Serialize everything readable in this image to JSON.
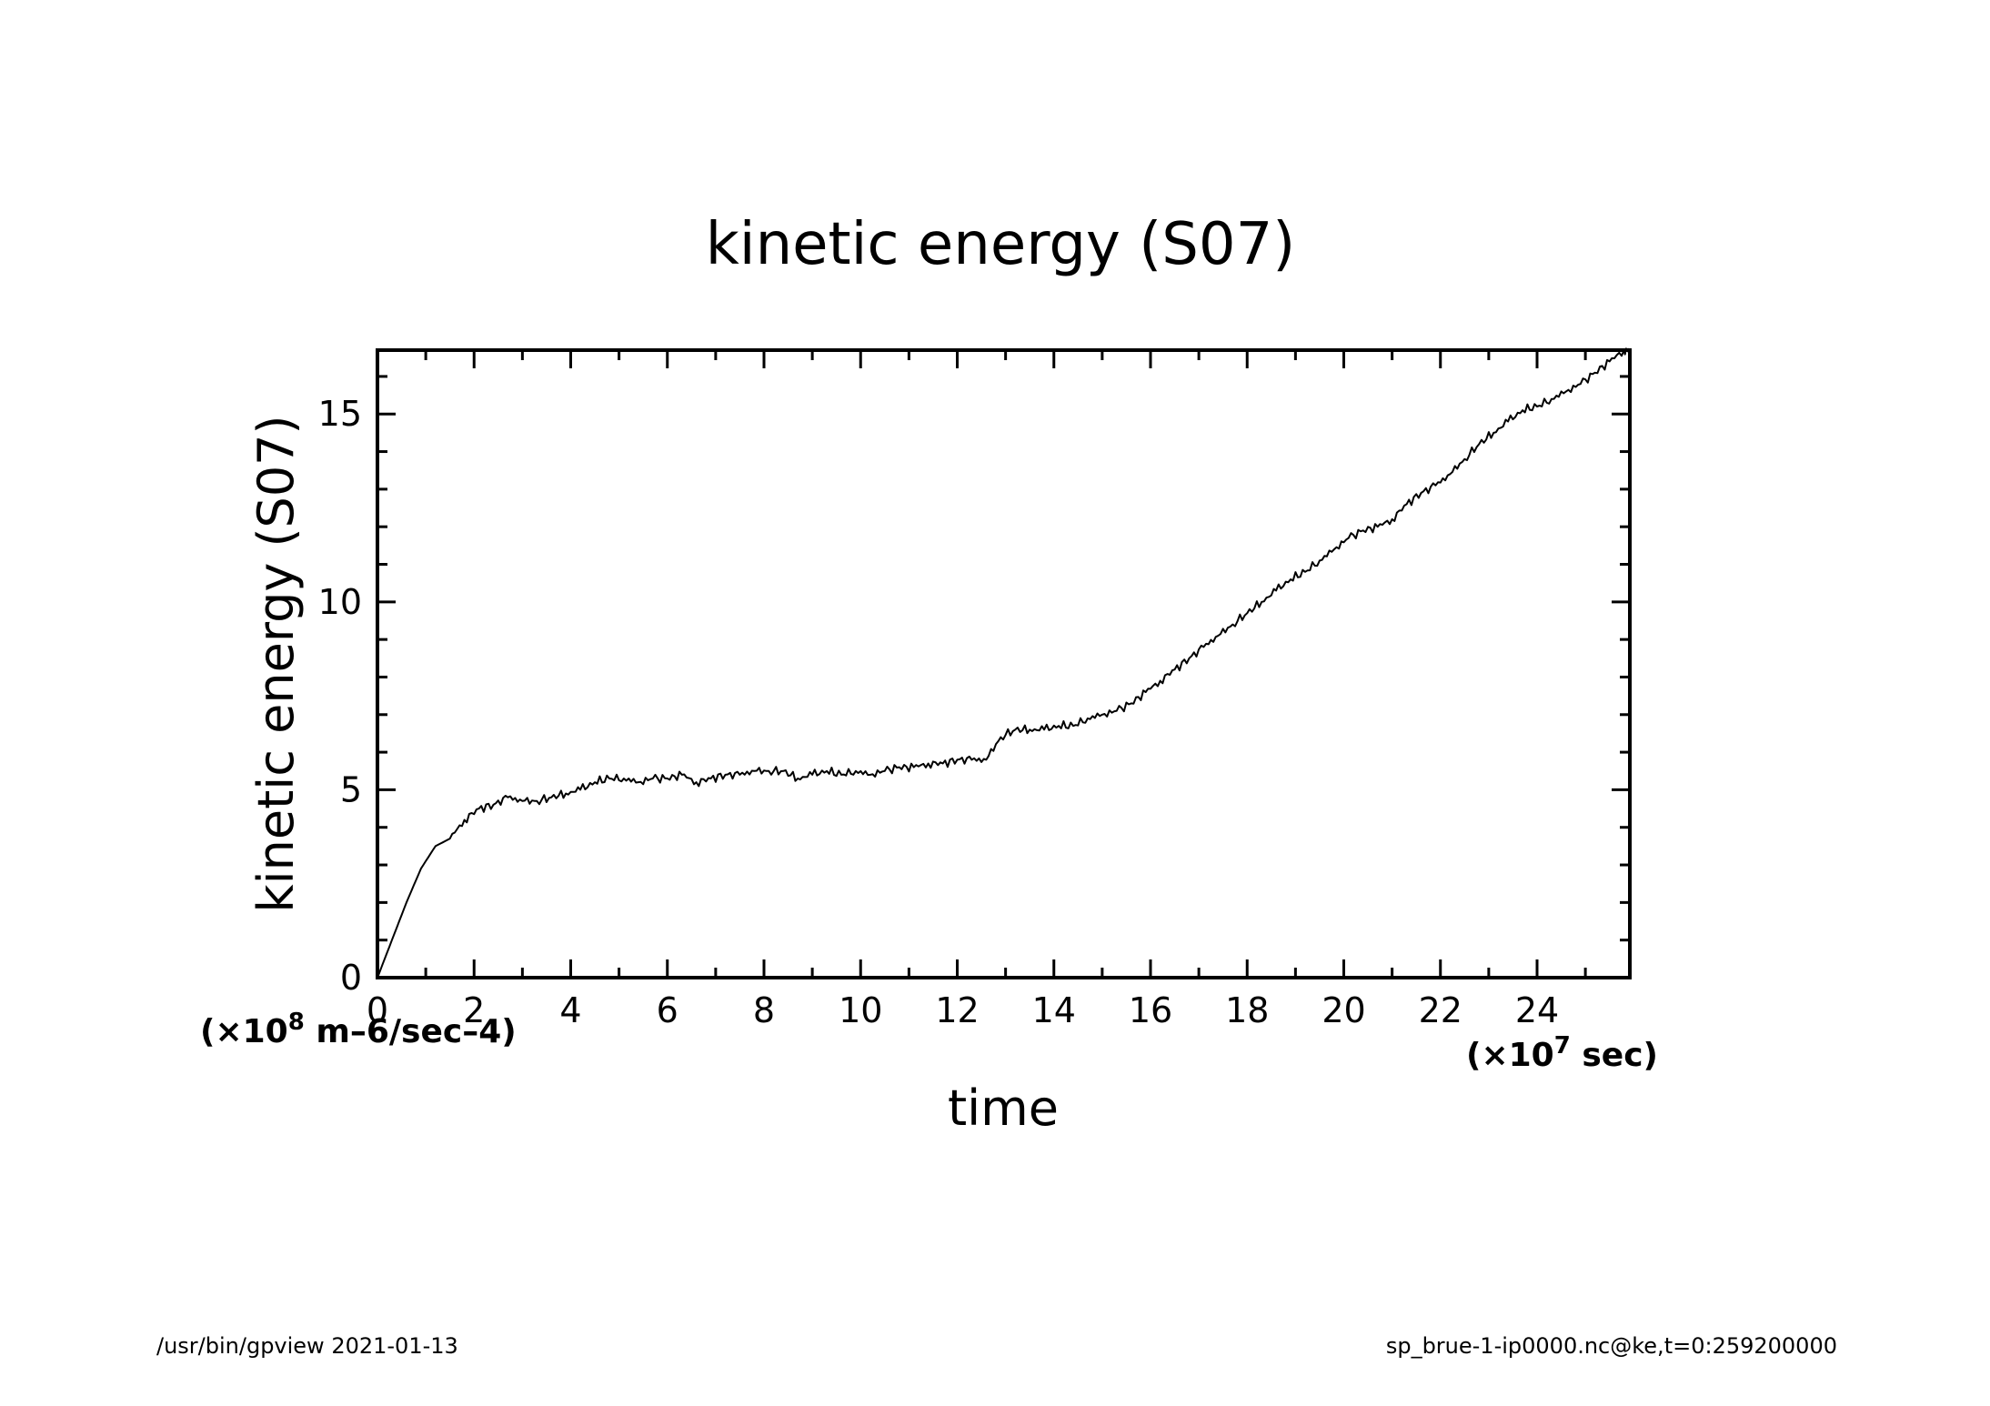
{
  "chart_data": {
    "type": "line",
    "title": "kinetic energy (S07)",
    "xlabel": "time",
    "ylabel": "kinetic energy (S07)",
    "x_units": "(×10^7 sec)",
    "y_units": "(×10^8 m^6/sec^4)",
    "x_units_parts": {
      "open": "(×10",
      "exp": "7",
      "rest": " sec)"
    },
    "y_units_parts": {
      "open": "(×10",
      "exp": "8",
      "rest": " m–6/sec–4)"
    },
    "xlim": [
      0,
      25.92
    ],
    "ylim": [
      0,
      16.7
    ],
    "x_ticks": [
      "0",
      "2",
      "4",
      "6",
      "8",
      "10",
      "12",
      "14",
      "16",
      "18",
      "20",
      "22",
      "24"
    ],
    "y_ticks": [
      "0",
      "5",
      "10",
      "15"
    ],
    "grid": false,
    "series": [
      {
        "x": [
          0,
          0.3,
          0.6,
          0.9,
          1.2,
          1.5,
          1.8,
          2.1,
          2.4,
          2.7,
          3.0,
          3.3,
          3.6,
          3.9,
          4.2,
          4.5,
          4.8,
          5.1,
          5.4,
          5.7,
          6.0,
          6.3,
          6.6,
          6.9,
          7.2,
          7.5,
          7.8,
          8.1,
          8.4,
          8.7,
          9.0,
          9.3,
          9.6,
          9.9,
          10.2,
          10.5,
          10.8,
          11.1,
          11.4,
          11.7,
          12.0,
          12.3,
          12.6,
          12.9,
          13.2,
          13.5,
          13.8,
          14.1,
          14.4,
          14.7,
          15.0,
          15.3,
          15.6,
          15.9,
          16.2,
          16.5,
          16.8,
          17.1,
          17.4,
          17.7,
          18.0,
          18.3,
          18.6,
          18.9,
          19.2,
          19.5,
          19.8,
          20.1,
          20.4,
          20.7,
          21.0,
          21.3,
          21.6,
          21.9,
          22.2,
          22.5,
          22.8,
          23.1,
          23.4,
          23.7,
          24.0,
          24.3,
          24.6,
          24.9,
          25.2,
          25.5,
          25.8,
          25.92
        ],
        "values": [
          0.0,
          1.0,
          2.0,
          2.9,
          3.5,
          3.7,
          4.2,
          4.5,
          4.6,
          4.8,
          4.7,
          4.7,
          4.8,
          4.9,
          5.0,
          5.2,
          5.3,
          5.3,
          5.2,
          5.3,
          5.3,
          5.4,
          5.2,
          5.3,
          5.4,
          5.4,
          5.5,
          5.5,
          5.5,
          5.3,
          5.4,
          5.5,
          5.4,
          5.5,
          5.4,
          5.5,
          5.6,
          5.6,
          5.7,
          5.7,
          5.8,
          5.8,
          5.8,
          6.4,
          6.6,
          6.6,
          6.6,
          6.7,
          6.7,
          6.9,
          7.0,
          7.1,
          7.3,
          7.6,
          7.9,
          8.2,
          8.5,
          8.8,
          9.1,
          9.4,
          9.7,
          10.0,
          10.3,
          10.6,
          10.8,
          11.1,
          11.4,
          11.7,
          11.9,
          12.0,
          12.2,
          12.6,
          12.9,
          13.1,
          13.4,
          13.8,
          14.2,
          14.5,
          14.8,
          15.1,
          15.2,
          15.4,
          15.6,
          15.8,
          16.1,
          16.4,
          16.7,
          16.7
        ]
      }
    ]
  },
  "footer": {
    "left": "/usr/bin/gpview   2021-01-13",
    "right": "sp_brue-1-ip0000.nc@ke,t=0:259200000"
  }
}
